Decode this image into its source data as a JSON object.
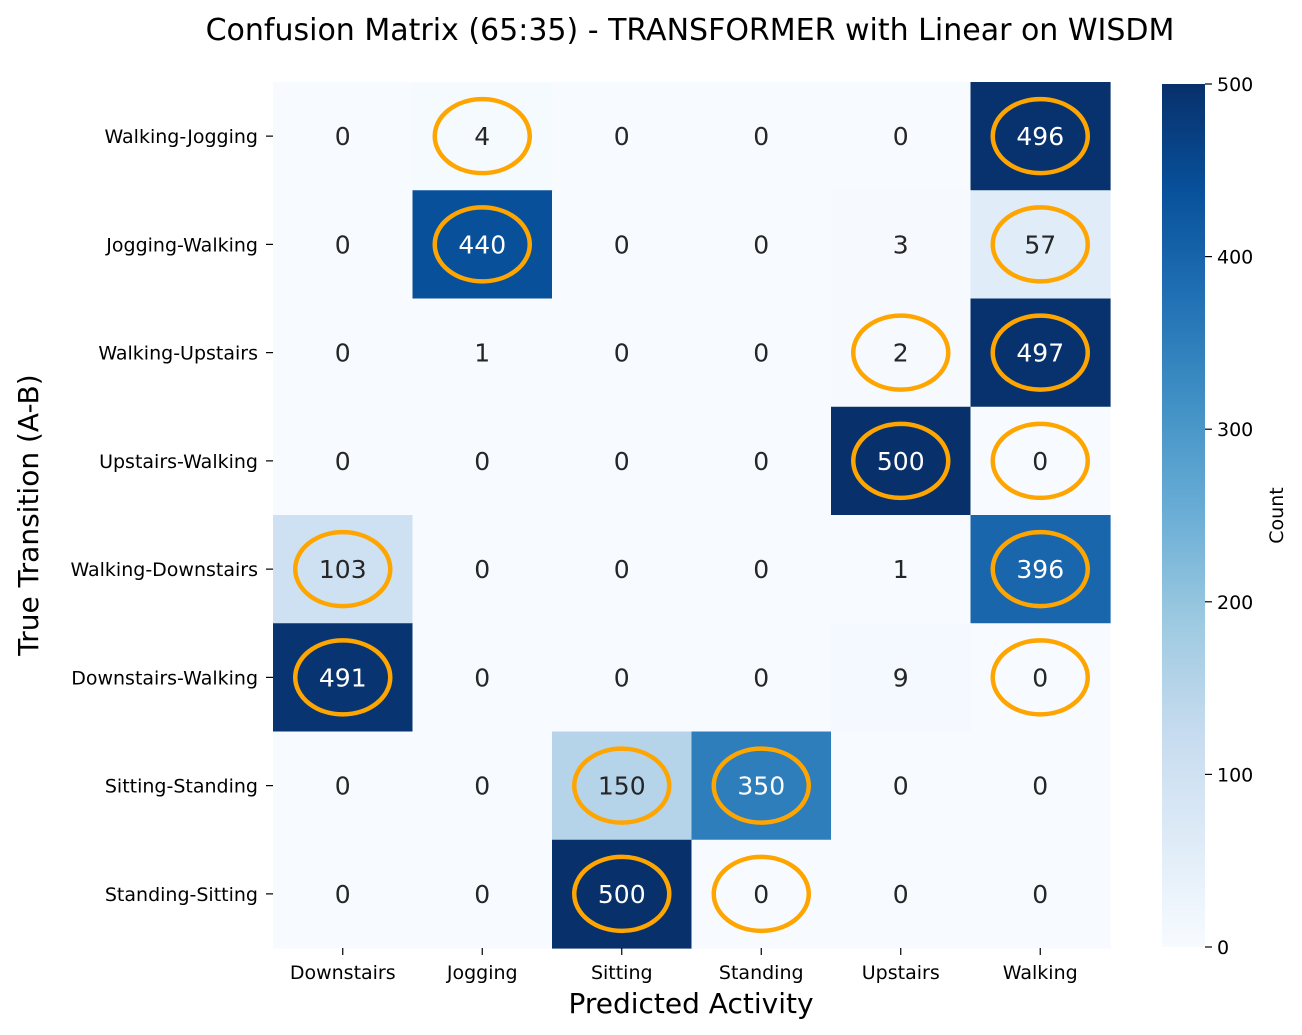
{
  "chart_data": {
    "type": "heatmap",
    "title": "Confusion Matrix (65:35) - TRANSFORMER with Linear on WISDM",
    "xlabel": "Predicted Activity",
    "ylabel": "True Transition (A-B)",
    "x_categories": [
      "Downstairs",
      "Jogging",
      "Sitting",
      "Standing",
      "Upstairs",
      "Walking"
    ],
    "y_categories": [
      "Walking-Jogging",
      "Jogging-Walking",
      "Walking-Upstairs",
      "Upstairs-Walking",
      "Walking-Downstairs",
      "Downstairs-Walking",
      "Sitting-Standing",
      "Standing-Sitting"
    ],
    "values": [
      [
        0,
        4,
        0,
        0,
        0,
        496
      ],
      [
        0,
        440,
        0,
        0,
        3,
        57
      ],
      [
        0,
        1,
        0,
        0,
        2,
        497
      ],
      [
        0,
        0,
        0,
        0,
        500,
        0
      ],
      [
        103,
        0,
        0,
        0,
        1,
        396
      ],
      [
        491,
        0,
        0,
        0,
        9,
        0
      ],
      [
        0,
        0,
        150,
        350,
        0,
        0
      ],
      [
        0,
        0,
        500,
        0,
        0,
        0
      ]
    ],
    "highlighted_cells": [
      [
        0,
        1
      ],
      [
        0,
        5
      ],
      [
        1,
        1
      ],
      [
        1,
        5
      ],
      [
        2,
        4
      ],
      [
        2,
        5
      ],
      [
        3,
        4
      ],
      [
        3,
        5
      ],
      [
        4,
        0
      ],
      [
        4,
        5
      ],
      [
        5,
        0
      ],
      [
        5,
        5
      ],
      [
        6,
        2
      ],
      [
        6,
        3
      ],
      [
        7,
        2
      ],
      [
        7,
        3
      ]
    ],
    "highlight_color": "#FFA500",
    "colormap": "Blues",
    "value_range": [
      0,
      500
    ],
    "colorbar": {
      "label": "Count",
      "ticks": [
        0,
        100,
        200,
        300,
        400,
        500
      ]
    }
  }
}
